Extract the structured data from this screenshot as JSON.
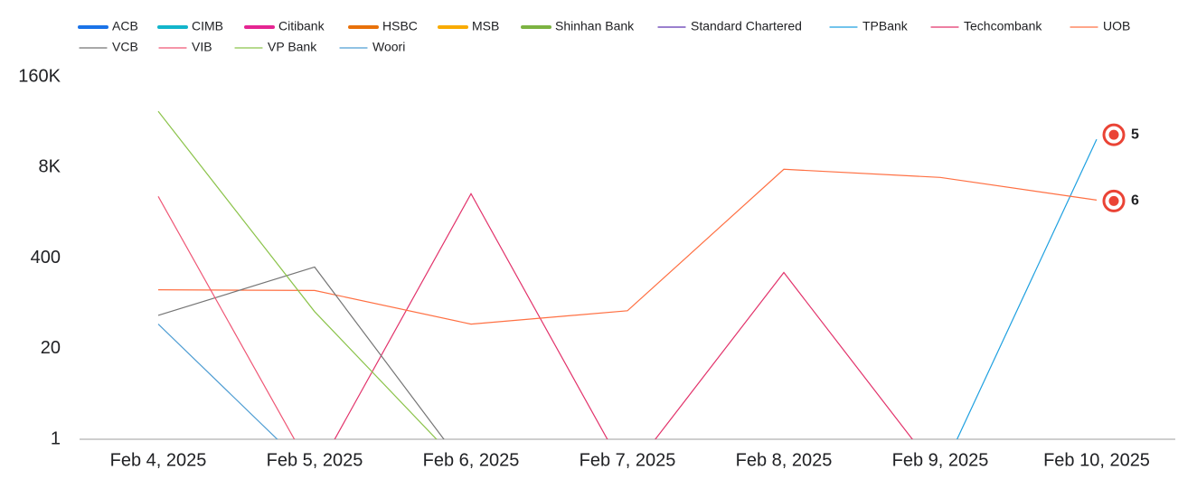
{
  "chart_data": {
    "type": "line",
    "log_scale": true,
    "categories": [
      "Feb 4, 2025",
      "Feb 5, 2025",
      "Feb 6, 2025",
      "Feb 7, 2025",
      "Feb 8, 2025",
      "Feb 9, 2025",
      "Feb 10, 2025"
    ],
    "ylim": [
      1,
      160000
    ],
    "yticks": [
      1,
      20,
      400,
      {
        "value": 8000,
        "label": "8K"
      },
      {
        "value": 160000,
        "label": "160K"
      }
    ],
    "series": [
      {
        "name": "ACB",
        "color": "#1a73e8",
        "line_width": 4,
        "values": [
          null,
          null,
          null,
          null,
          null,
          null,
          null
        ]
      },
      {
        "name": "CIMB",
        "color": "#12b5cb",
        "line_width": 4,
        "values": [
          null,
          null,
          null,
          null,
          null,
          null,
          null
        ]
      },
      {
        "name": "Citibank",
        "color": "#e52592",
        "line_width": 4,
        "values": [
          null,
          null,
          null,
          null,
          null,
          null,
          null
        ]
      },
      {
        "name": "HSBC",
        "color": "#e8710a",
        "line_width": 4,
        "values": [
          null,
          null,
          null,
          null,
          null,
          null,
          null
        ]
      },
      {
        "name": "MSB",
        "color": "#f9ab00",
        "line_width": 4,
        "values": [
          null,
          null,
          null,
          null,
          null,
          null,
          null
        ]
      },
      {
        "name": "Shinhan Bank",
        "color": "#7cb342",
        "line_width": 4,
        "values": [
          null,
          null,
          null,
          null,
          null,
          null,
          null
        ]
      },
      {
        "name": "Standard Chartered",
        "color": "#5e35b1",
        "line_width": 1.2,
        "values": [
          null,
          null,
          null,
          null,
          null,
          null,
          null
        ]
      },
      {
        "name": "TPBank",
        "color": "#1ea0e0",
        "line_width": 1.2,
        "values": [
          null,
          null,
          null,
          null,
          null,
          0,
          20250
        ]
      },
      {
        "name": "Techcombank",
        "color": "#e2336b",
        "line_width": 1.2,
        "values": [
          null,
          0,
          3350,
          0,
          248,
          0,
          null
        ]
      },
      {
        "name": "UOB",
        "color": "#ff7043",
        "line_width": 1.2,
        "values": [
          140,
          137,
          45,
          70,
          7530,
          5750,
          2720
        ]
      },
      {
        "name": "VCB",
        "color": "#757575",
        "line_width": 1.2,
        "values": [
          60,
          297,
          0,
          null,
          null,
          null,
          null
        ]
      },
      {
        "name": "VIB",
        "color": "#ef5675",
        "line_width": 1.2,
        "values": [
          3070,
          0,
          null,
          null,
          null,
          null,
          null
        ]
      },
      {
        "name": "VP Bank",
        "color": "#8bc34a",
        "line_width": 1.2,
        "values": [
          51200,
          68,
          0,
          null,
          null,
          null,
          null
        ]
      },
      {
        "name": "Woori",
        "color": "#4e9dd3",
        "line_width": 1.2,
        "values": [
          45,
          0,
          null,
          null,
          null,
          null,
          null
        ]
      }
    ],
    "annotations": [
      {
        "text": "5",
        "series": "TPBank"
      },
      {
        "text": "6",
        "series": "UOB"
      }
    ]
  }
}
